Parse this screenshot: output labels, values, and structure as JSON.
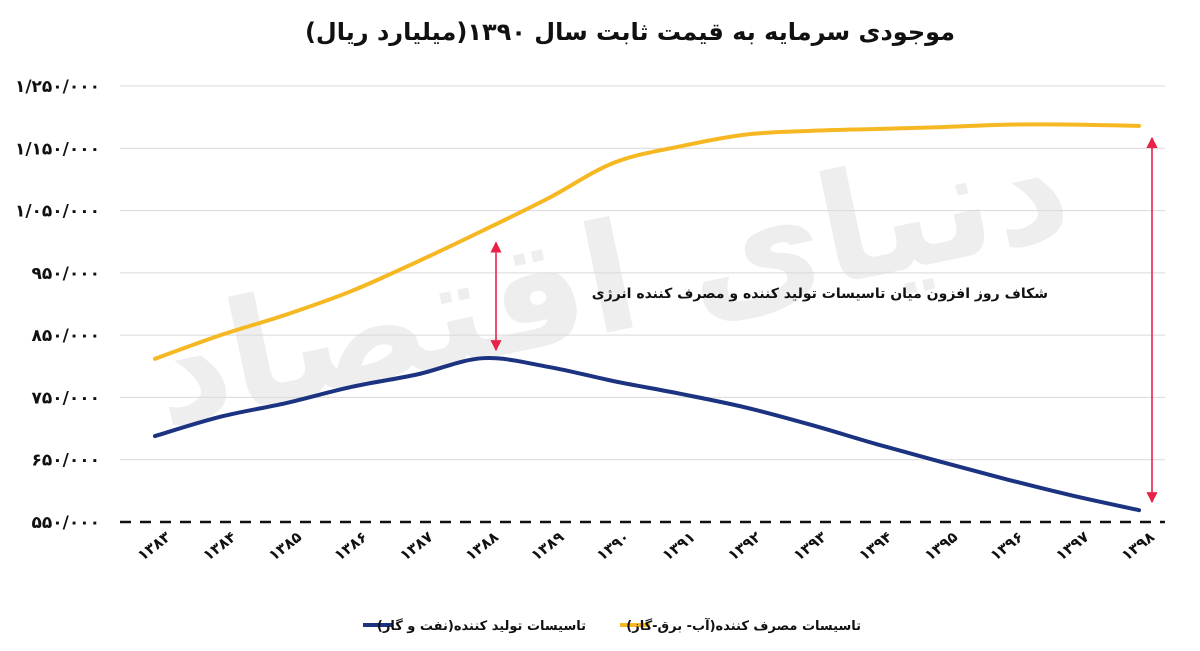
{
  "chart_data": {
    "type": "line",
    "title": "موجودی سرمایه به قیمت ثابت سال ۱۳۹۰(میلیارد ریال)",
    "categories": [
      "۱۳۸۳",
      "۱۳۸۴",
      "۱۳۸۵",
      "۱۳۸۶",
      "۱۳۸۷",
      "۱۳۸۸",
      "۱۳۸۹",
      "۱۳۹۰",
      "۱۳۹۱",
      "۱۳۹۲",
      "۱۳۹۳",
      "۱۳۹۴",
      "۱۳۹۵",
      "۱۳۹۶",
      "۱۳۹۷",
      "۱۳۹۸"
    ],
    "series": [
      {
        "name": "تاسیسات تولید کننده(نفت و گاز)",
        "color": "#1b3380",
        "values": [
          688000,
          719000,
          741000,
          767000,
          787000,
          813000,
          799000,
          776000,
          756000,
          734000,
          706000,
          675000,
          646000,
          618000,
          592000,
          569000
        ]
      },
      {
        "name": "تاسیسات مصرف کننده(آب- برق-گاز)",
        "color": "#f5b822",
        "values": [
          812000,
          850000,
          883000,
          921000,
          968000,
          1018000,
          1070000,
          1127000,
          1153000,
          1172000,
          1178000,
          1181000,
          1184000,
          1188000,
          1188000,
          1186000
        ]
      }
    ],
    "yticks": [
      "۵۵۰/۰۰۰",
      "۶۵۰/۰۰۰",
      "۷۵۰/۰۰۰",
      "۸۵۰/۰۰۰",
      "۹۵۰/۰۰۰",
      "۱/۰۵۰/۰۰۰",
      "۱/۱۵۰/۰۰۰",
      "۱/۲۵۰/۰۰۰"
    ],
    "ylim": [
      550000,
      1250000
    ],
    "grid": true,
    "legend_position": "bottom",
    "annotation": "شکاف روز افزون میان تاسیسات تولید کننده و مصرف کننده انرژی",
    "arrow_color": "#e8234a",
    "watermark": "دنیای اقتصاد"
  }
}
